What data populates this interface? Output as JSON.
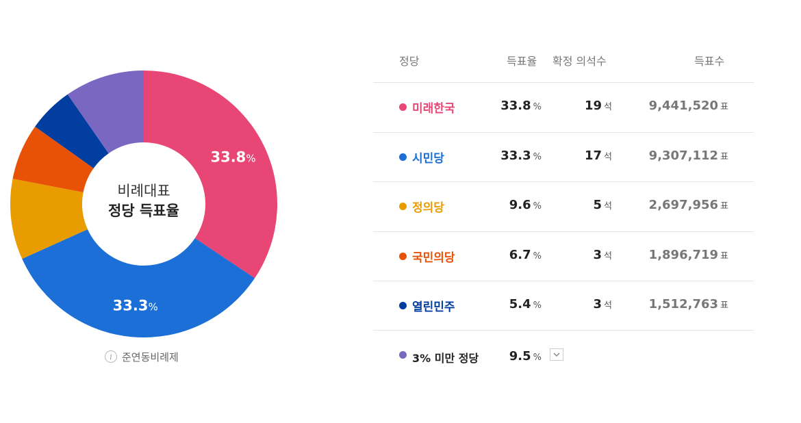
{
  "chart_data": {
    "type": "pie",
    "title": "비례대표 정당 득표율",
    "center_label": {
      "line1": "비례대표",
      "line2": "정당 득표율"
    },
    "categories": [
      "미래한국",
      "시민당",
      "정의당",
      "국민의당",
      "열린민주",
      "3% 미만 정당"
    ],
    "values": [
      33.8,
      33.3,
      9.6,
      6.7,
      5.4,
      9.5
    ],
    "colors": [
      "#e84775",
      "#1b6fd6",
      "#e89c00",
      "#e85206",
      "#013ea0",
      "#7967c1"
    ],
    "slice_labels": [
      {
        "value": "33.8",
        "unit": "%"
      },
      {
        "value": "33.3",
        "unit": "%"
      }
    ]
  },
  "note": {
    "icon": "info-icon",
    "text": "준연동비례제"
  },
  "table": {
    "headers": {
      "party": "정당",
      "pct": "득표율",
      "seats": "확정 의석수",
      "votes": "득표수"
    },
    "rows": [
      {
        "party": "미래한국",
        "color": "#e84775",
        "pct": "33.8",
        "pct_unit": "%",
        "seats": "19",
        "seats_unit": "석",
        "votes": "9,441,520",
        "votes_unit": "표"
      },
      {
        "party": "시민당",
        "color": "#1b6fd6",
        "pct": "33.3",
        "pct_unit": "%",
        "seats": "17",
        "seats_unit": "석",
        "votes": "9,307,112",
        "votes_unit": "표"
      },
      {
        "party": "정의당",
        "color": "#e89c00",
        "pct": "9.6",
        "pct_unit": "%",
        "seats": "5",
        "seats_unit": "석",
        "votes": "2,697,956",
        "votes_unit": "표"
      },
      {
        "party": "국민의당",
        "color": "#e85206",
        "pct": "6.7",
        "pct_unit": "%",
        "seats": "3",
        "seats_unit": "석",
        "votes": "1,896,719",
        "votes_unit": "표"
      },
      {
        "party": "열린민주",
        "color": "#013ea0",
        "pct": "5.4",
        "pct_unit": "%",
        "seats": "3",
        "seats_unit": "석",
        "votes": "1,512,763",
        "votes_unit": "표"
      }
    ],
    "minor": {
      "party": "3% 미만 정당",
      "color": "#7967c1",
      "party_text_color": "#222222",
      "pct": "9.5",
      "pct_unit": "%",
      "dropdown_icon": "chevron-down-icon"
    }
  }
}
